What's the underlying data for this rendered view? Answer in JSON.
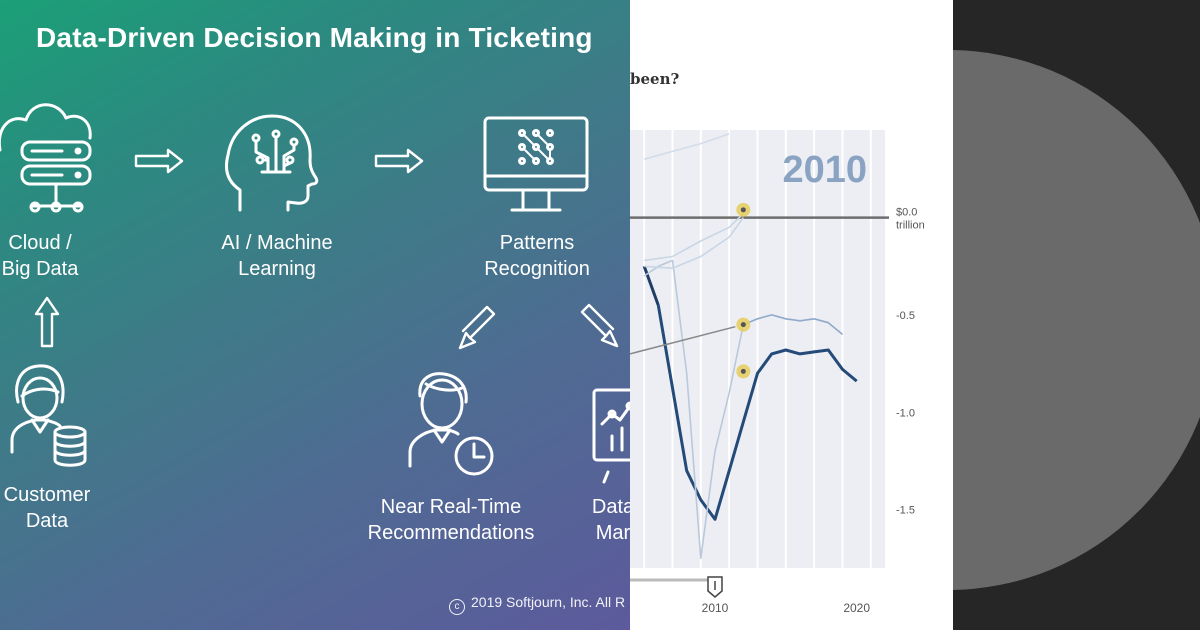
{
  "infographic": {
    "title": "Data-Driven Decision Making in Ticketing",
    "nodes": {
      "cloud": {
        "line1": "Cloud /",
        "line2": "Big Data",
        "icon": "cloud-server-icon"
      },
      "ai": {
        "line1": "AI / Machine",
        "line2": "Learning",
        "icon": "brain-circuit-icon"
      },
      "patterns": {
        "line1": "Patterns",
        "line2": "Recognition",
        "icon": "monitor-pattern-icon"
      },
      "customer": {
        "line1": "Customer",
        "line2": "Data",
        "icon": "customer-database-icon"
      },
      "realtime": {
        "line1": "Near Real-Time",
        "line2": "Recommendations",
        "icon": "person-clock-icon"
      },
      "datamart": {
        "line1": "Data",
        "line2": "Mar",
        "icon": "dashboard-chart-icon"
      }
    },
    "copyright": "2019 Softjourn, Inc. All R"
  },
  "chart_data": {
    "type": "line",
    "title": "been?",
    "highlight_year": "2010",
    "x_ticks": [
      2010,
      2020
    ],
    "xlim": [
      2004,
      2022
    ],
    "ylim": [
      -1.8,
      0.45
    ],
    "y_ticks": [
      {
        "value": 0.0,
        "label": "$0.0",
        "sublabel": "trillion"
      },
      {
        "value": -0.5,
        "label": "-0.5"
      },
      {
        "value": -1.0,
        "label": "-1.0"
      },
      {
        "value": -1.5,
        "label": "-1.5"
      }
    ],
    "series": [
      {
        "role": "actual",
        "color": "#1f3d66",
        "x": [
          2005,
          2006
        ],
        "y": [
          -0.25,
          -0.45
        ]
      },
      {
        "role": "actual",
        "color": "#244a7a",
        "x": [
          2006,
          2008,
          2009,
          2010,
          2011,
          2012,
          2013,
          2014,
          2015,
          2016,
          2017,
          2018,
          2019,
          2020
        ],
        "y": [
          -0.45,
          -1.3,
          -1.45,
          -1.55,
          -1.3,
          -1.05,
          -0.8,
          -0.7,
          -0.68,
          -0.7,
          -0.69,
          -0.68,
          -0.78,
          -0.84
        ]
      },
      {
        "role": "projection",
        "color": "#8fa9c9",
        "x": [
          2012,
          2013,
          2014,
          2015,
          2016,
          2017,
          2018,
          2019
        ],
        "y": [
          -0.55,
          -0.52,
          -0.5,
          -0.52,
          -0.53,
          -0.52,
          -0.54,
          -0.6
        ]
      },
      {
        "role": "projection",
        "color": "#b9c9dc",
        "x": [
          2005,
          2006,
          2007,
          2008,
          2009,
          2010,
          2011,
          2012
        ],
        "y": [
          -0.3,
          -0.25,
          -0.22,
          -0.8,
          -1.75,
          -1.2,
          -0.9,
          -0.55
        ]
      },
      {
        "role": "projection",
        "color": "#c9d6e5",
        "x": [
          2005,
          2007,
          2009,
          2011,
          2012
        ],
        "y": [
          -0.22,
          -0.2,
          -0.12,
          -0.05,
          0.02
        ]
      },
      {
        "role": "projection",
        "color": "#c9d6e5",
        "x": [
          2005,
          2007,
          2009,
          2011,
          2012
        ],
        "y": [
          -0.25,
          -0.26,
          -0.2,
          -0.1,
          0.0
        ]
      },
      {
        "role": "projection",
        "color": "#d2dde9",
        "x": [
          2005,
          2007,
          2009,
          2011
        ],
        "y": [
          0.3,
          0.34,
          0.38,
          0.43
        ]
      }
    ],
    "markers": [
      {
        "x": 2012,
        "y": 0.04
      },
      {
        "x": 2012,
        "y": -0.55
      },
      {
        "x": 2012,
        "y": -0.79
      }
    ],
    "reference_line": 0.0,
    "grid": true,
    "year_slider": {
      "value": 2010
    }
  }
}
